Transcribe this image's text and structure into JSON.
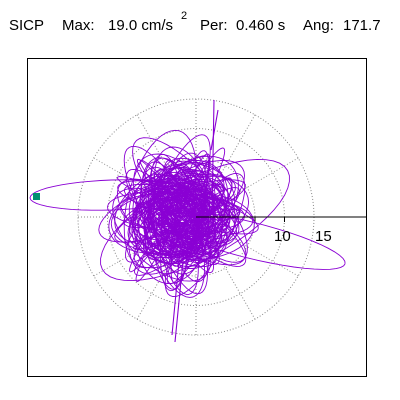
{
  "header": {
    "station": "SICP",
    "max_label": "Max:",
    "max_value": "19.0 cm/s",
    "max_exp": "2",
    "per_label": "Per:",
    "per_value": "0.460 s",
    "ang_label": "Ang:",
    "ang_value": "171.7"
  },
  "chart_data": {
    "type": "scatter",
    "plot": "polar-orbit",
    "units": "cm/s^2",
    "radial_ticks": [
      5,
      10,
      15
    ],
    "radial_tick_labels": [
      "10",
      "15"
    ],
    "rmax": 20,
    "grid": true,
    "max_amplitude": 19.0,
    "period_s": 0.46,
    "angle_deg": 171.7,
    "marker_color": "#009070",
    "trace_color": "#8a00d4",
    "grid_color": "#888888"
  }
}
